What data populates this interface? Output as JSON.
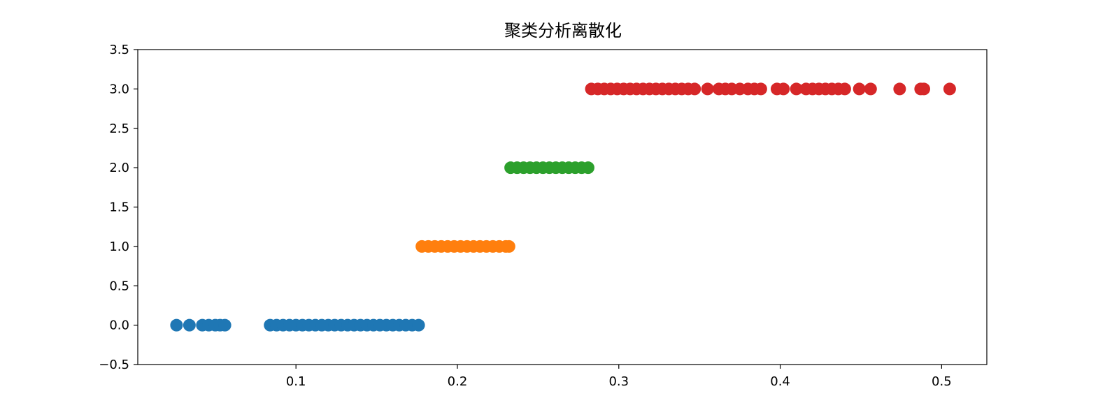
{
  "chart_data": {
    "type": "scatter",
    "title": "聚类分析离散化",
    "xlabel": "",
    "ylabel": "",
    "xlim": [
      0.002,
      0.528
    ],
    "ylim": [
      -0.5,
      3.5
    ],
    "xticks": [
      0.1,
      0.2,
      0.3,
      0.4,
      0.5
    ],
    "xtick_labels": [
      "0.1",
      "0.2",
      "0.3",
      "0.4",
      "0.5"
    ],
    "yticks": [
      -0.5,
      0.0,
      0.5,
      1.0,
      1.5,
      2.0,
      2.5,
      3.0,
      3.5
    ],
    "ytick_labels": [
      "−0.5",
      "0.0",
      "0.5",
      "1.0",
      "1.5",
      "2.0",
      "2.5",
      "3.0",
      "3.5"
    ],
    "grid": false,
    "legend": "none",
    "series": [
      {
        "color": "#1f77b4",
        "points": [
          [
            0.026,
            0
          ],
          [
            0.034,
            0
          ],
          [
            0.042,
            0
          ],
          [
            0.046,
            0
          ],
          [
            0.05,
            0
          ],
          [
            0.053,
            0
          ],
          [
            0.056,
            0
          ],
          [
            0.084,
            0
          ],
          [
            0.088,
            0
          ],
          [
            0.092,
            0
          ],
          [
            0.096,
            0
          ],
          [
            0.1,
            0
          ],
          [
            0.104,
            0
          ],
          [
            0.108,
            0
          ],
          [
            0.112,
            0
          ],
          [
            0.116,
            0
          ],
          [
            0.12,
            0
          ],
          [
            0.124,
            0
          ],
          [
            0.128,
            0
          ],
          [
            0.132,
            0
          ],
          [
            0.136,
            0
          ],
          [
            0.14,
            0
          ],
          [
            0.144,
            0
          ],
          [
            0.148,
            0
          ],
          [
            0.152,
            0
          ],
          [
            0.156,
            0
          ],
          [
            0.16,
            0
          ],
          [
            0.164,
            0
          ],
          [
            0.168,
            0
          ],
          [
            0.172,
            0
          ],
          [
            0.176,
            0
          ]
        ]
      },
      {
        "color": "#ff7f0e",
        "points": [
          [
            0.178,
            1
          ],
          [
            0.182,
            1
          ],
          [
            0.186,
            1
          ],
          [
            0.19,
            1
          ],
          [
            0.194,
            1
          ],
          [
            0.198,
            1
          ],
          [
            0.202,
            1
          ],
          [
            0.206,
            1
          ],
          [
            0.21,
            1
          ],
          [
            0.214,
            1
          ],
          [
            0.218,
            1
          ],
          [
            0.222,
            1
          ],
          [
            0.226,
            1
          ],
          [
            0.23,
            1
          ],
          [
            0.232,
            1
          ]
        ]
      },
      {
        "color": "#2ca02c",
        "points": [
          [
            0.233,
            2
          ],
          [
            0.237,
            2
          ],
          [
            0.241,
            2
          ],
          [
            0.245,
            2
          ],
          [
            0.249,
            2
          ],
          [
            0.253,
            2
          ],
          [
            0.257,
            2
          ],
          [
            0.261,
            2
          ],
          [
            0.265,
            2
          ],
          [
            0.269,
            2
          ],
          [
            0.273,
            2
          ],
          [
            0.277,
            2
          ],
          [
            0.281,
            2
          ]
        ]
      },
      {
        "color": "#d62728",
        "points": [
          [
            0.283,
            3
          ],
          [
            0.287,
            3
          ],
          [
            0.291,
            3
          ],
          [
            0.295,
            3
          ],
          [
            0.299,
            3
          ],
          [
            0.303,
            3
          ],
          [
            0.307,
            3
          ],
          [
            0.311,
            3
          ],
          [
            0.315,
            3
          ],
          [
            0.319,
            3
          ],
          [
            0.323,
            3
          ],
          [
            0.327,
            3
          ],
          [
            0.331,
            3
          ],
          [
            0.335,
            3
          ],
          [
            0.339,
            3
          ],
          [
            0.343,
            3
          ],
          [
            0.347,
            3
          ],
          [
            0.355,
            3
          ],
          [
            0.362,
            3
          ],
          [
            0.366,
            3
          ],
          [
            0.37,
            3
          ],
          [
            0.375,
            3
          ],
          [
            0.38,
            3
          ],
          [
            0.384,
            3
          ],
          [
            0.388,
            3
          ],
          [
            0.398,
            3
          ],
          [
            0.402,
            3
          ],
          [
            0.41,
            3
          ],
          [
            0.416,
            3
          ],
          [
            0.42,
            3
          ],
          [
            0.424,
            3
          ],
          [
            0.428,
            3
          ],
          [
            0.432,
            3
          ],
          [
            0.436,
            3
          ],
          [
            0.44,
            3
          ],
          [
            0.449,
            3
          ],
          [
            0.456,
            3
          ],
          [
            0.474,
            3
          ],
          [
            0.487,
            3
          ],
          [
            0.489,
            3
          ],
          [
            0.505,
            3
          ]
        ]
      }
    ]
  }
}
